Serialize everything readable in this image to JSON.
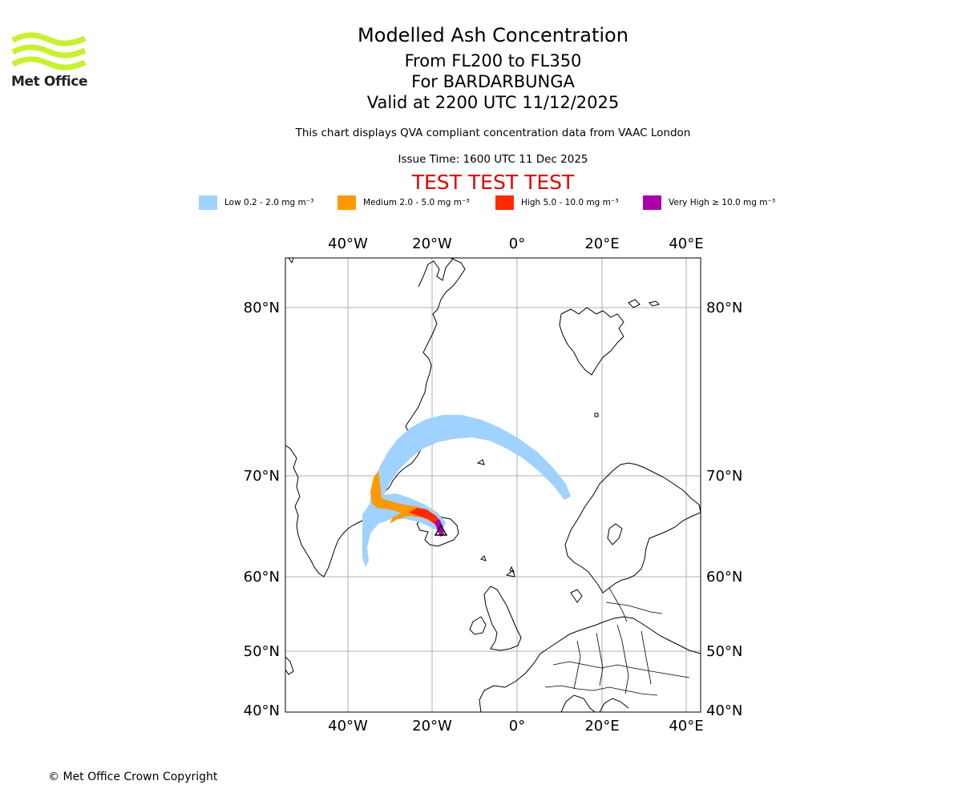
{
  "header": {
    "logo_text": "Met Office",
    "title": "Modelled Ash Concentration",
    "flight_levels": "From FL200 to FL350",
    "volcano": "For BARDARBUNGA",
    "valid_time": "Valid at 2200 UTC 11/12/2025",
    "description": "This chart displays QVA compliant concentration data from VAAC London",
    "issue_time": "Issue Time: 1600 UTC 11 Dec 2025",
    "test_banner": "TEST TEST TEST"
  },
  "legend": [
    {
      "label": "Low 0.2 - 2.0 mg m⁻³",
      "color": "#a0d2ff"
    },
    {
      "label": "Medium 2.0 - 5.0 mg m⁻³",
      "color": "#ff9900"
    },
    {
      "label": "High 5.0 - 10.0 mg m⁻³",
      "color": "#ff2a00"
    },
    {
      "label": "Very High  ≥  10.0 mg m⁻³",
      "color": "#aa00aa"
    }
  ],
  "map": {
    "lon_ticks": [
      "40°W",
      "20°W",
      "0°",
      "20°E",
      "40°E"
    ],
    "lat_ticks": [
      "80°N",
      "70°N",
      "60°N",
      "50°N",
      "40°N"
    ],
    "colors": {
      "low": "#a0d2ff",
      "medium": "#ff9900",
      "high": "#ff2a00",
      "very_high": "#aa00aa"
    }
  },
  "footer": {
    "copyright": "© Met Office Crown Copyright"
  }
}
